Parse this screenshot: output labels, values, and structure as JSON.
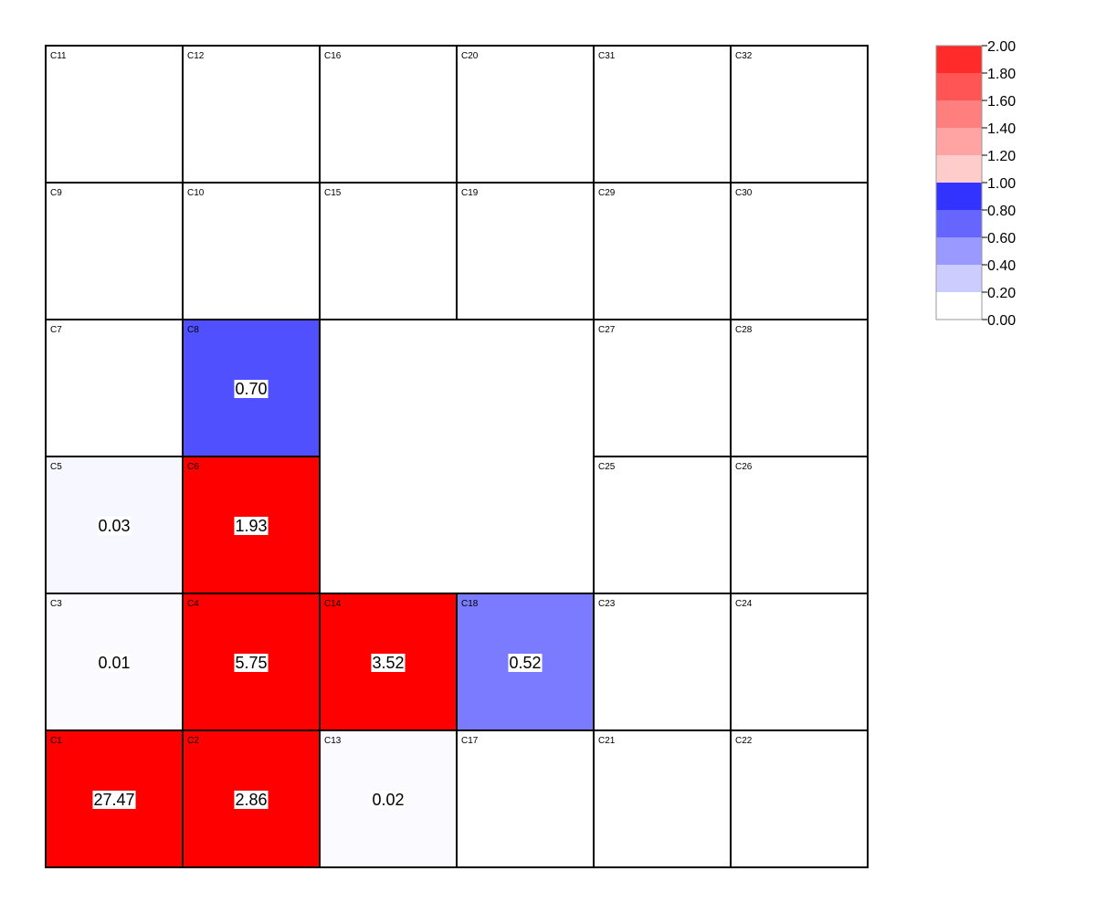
{
  "chart_data": {
    "type": "heatmap",
    "title": "",
    "xlabel": "",
    "ylabel": "",
    "grid": true,
    "legend_position": "top-right",
    "cells": [
      {
        "name": "C11",
        "row": 0,
        "col": 0,
        "value": null
      },
      {
        "name": "C12",
        "row": 0,
        "col": 1,
        "value": null
      },
      {
        "name": "C16",
        "row": 0,
        "col": 2,
        "value": null
      },
      {
        "name": "C20",
        "row": 0,
        "col": 3,
        "value": null
      },
      {
        "name": "C31",
        "row": 0,
        "col": 4,
        "value": null
      },
      {
        "name": "C32",
        "row": 0,
        "col": 5,
        "value": null
      },
      {
        "name": "C9",
        "row": 1,
        "col": 0,
        "value": null
      },
      {
        "name": "C10",
        "row": 1,
        "col": 1,
        "value": null
      },
      {
        "name": "C15",
        "row": 1,
        "col": 2,
        "value": null
      },
      {
        "name": "C19",
        "row": 1,
        "col": 3,
        "value": null
      },
      {
        "name": "C29",
        "row": 1,
        "col": 4,
        "value": null
      },
      {
        "name": "C30",
        "row": 1,
        "col": 5,
        "value": null
      },
      {
        "name": "C7",
        "row": 2,
        "col": 0,
        "value": null
      },
      {
        "name": "C8",
        "row": 2,
        "col": 1,
        "value": 0.7,
        "label": "0.70"
      },
      {
        "name": "C27",
        "row": 2,
        "col": 4,
        "value": null
      },
      {
        "name": "C28",
        "row": 2,
        "col": 5,
        "value": null
      },
      {
        "name": "C5",
        "row": 3,
        "col": 0,
        "value": 0.03,
        "label": "0.03"
      },
      {
        "name": "C6",
        "row": 3,
        "col": 1,
        "value": 1.93,
        "label": "1.93"
      },
      {
        "name": "C25",
        "row": 3,
        "col": 4,
        "value": null
      },
      {
        "name": "C26",
        "row": 3,
        "col": 5,
        "value": null
      },
      {
        "name": "C3",
        "row": 4,
        "col": 0,
        "value": 0.01,
        "label": "0.01"
      },
      {
        "name": "C4",
        "row": 4,
        "col": 1,
        "value": 5.75,
        "label": "5.75"
      },
      {
        "name": "C14",
        "row": 4,
        "col": 2,
        "value": 3.52,
        "label": "3.52"
      },
      {
        "name": "C18",
        "row": 4,
        "col": 3,
        "value": 0.52,
        "label": "0.52"
      },
      {
        "name": "C23",
        "row": 4,
        "col": 4,
        "value": null
      },
      {
        "name": "C24",
        "row": 4,
        "col": 5,
        "value": null
      },
      {
        "name": "C1",
        "row": 5,
        "col": 0,
        "value": 27.47,
        "label": "27.47"
      },
      {
        "name": "C2",
        "row": 5,
        "col": 1,
        "value": 2.86,
        "label": "2.86"
      },
      {
        "name": "C13",
        "row": 5,
        "col": 2,
        "value": 0.02,
        "label": "0.02"
      },
      {
        "name": "C17",
        "row": 5,
        "col": 3,
        "value": null
      },
      {
        "name": "C21",
        "row": 5,
        "col": 4,
        "value": null
      },
      {
        "name": "C22",
        "row": 5,
        "col": 5,
        "value": null
      }
    ],
    "colorbar": {
      "ticks": [
        "0.00",
        "0.20",
        "0.40",
        "0.60",
        "0.80",
        "1.00",
        "1.20",
        "1.40",
        "1.60",
        "1.80",
        "2.00"
      ],
      "bands": [
        {
          "min": 0.0,
          "max": 0.2,
          "color": "#ffffff"
        },
        {
          "min": 0.2,
          "max": 0.4,
          "color": "#ccccff"
        },
        {
          "min": 0.4,
          "max": 0.6,
          "color": "#9999ff"
        },
        {
          "min": 0.6,
          "max": 0.8,
          "color": "#6666ff"
        },
        {
          "min": 0.8,
          "max": 1.0,
          "color": "#3333ff"
        },
        {
          "min": 1.0,
          "max": 1.2,
          "color": "#ffcccc"
        },
        {
          "min": 1.2,
          "max": 1.4,
          "color": "#ffa3a3"
        },
        {
          "min": 1.4,
          "max": 1.6,
          "color": "#ff7f7f"
        },
        {
          "min": 1.6,
          "max": 1.8,
          "color": "#ff5555"
        },
        {
          "min": 1.8,
          "max": 2.0,
          "color": "#ff2a2a"
        }
      ]
    },
    "cell_colors": {
      "C8": "#5050ff",
      "C5": "#f7f7ff",
      "C6": "#ff0000",
      "C3": "#fafaff",
      "C4": "#ff0000",
      "C14": "#ff0000",
      "C18": "#7b7bff",
      "C1": "#ff0000",
      "C2": "#ff0000",
      "C13": "#fafaff"
    }
  }
}
